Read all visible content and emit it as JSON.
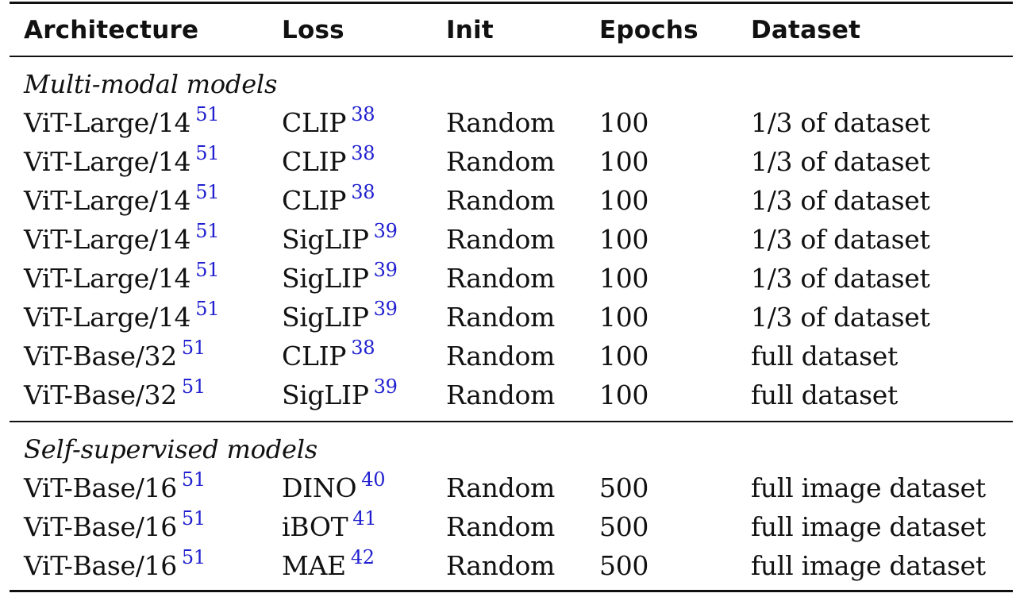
{
  "table": {
    "headers": [
      "Architecture",
      "Loss",
      "Init",
      "Epochs",
      "Dataset"
    ],
    "sections": [
      {
        "title": "Multi-modal models",
        "rows": [
          {
            "architecture": "ViT-Large/14",
            "architecture_ref": "51",
            "loss": "CLIP",
            "loss_ref": "38",
            "init": "Random",
            "epochs": "100",
            "dataset": "1/3 of dataset"
          },
          {
            "architecture": "ViT-Large/14",
            "architecture_ref": "51",
            "loss": "CLIP",
            "loss_ref": "38",
            "init": "Random",
            "epochs": "100",
            "dataset": "1/3 of dataset"
          },
          {
            "architecture": "ViT-Large/14",
            "architecture_ref": "51",
            "loss": "CLIP",
            "loss_ref": "38",
            "init": "Random",
            "epochs": "100",
            "dataset": "1/3 of dataset"
          },
          {
            "architecture": "ViT-Large/14",
            "architecture_ref": "51",
            "loss": "SigLIP",
            "loss_ref": "39",
            "init": "Random",
            "epochs": "100",
            "dataset": "1/3 of dataset"
          },
          {
            "architecture": "ViT-Large/14",
            "architecture_ref": "51",
            "loss": "SigLIP",
            "loss_ref": "39",
            "init": "Random",
            "epochs": "100",
            "dataset": "1/3 of dataset"
          },
          {
            "architecture": "ViT-Large/14",
            "architecture_ref": "51",
            "loss": "SigLIP",
            "loss_ref": "39",
            "init": "Random",
            "epochs": "100",
            "dataset": "1/3 of dataset"
          },
          {
            "architecture": "ViT-Base/32",
            "architecture_ref": "51",
            "loss": "CLIP",
            "loss_ref": "38",
            "init": "Random",
            "epochs": "100",
            "dataset": "full dataset"
          },
          {
            "architecture": "ViT-Base/32",
            "architecture_ref": "51",
            "loss": "SigLIP",
            "loss_ref": "39",
            "init": "Random",
            "epochs": "100",
            "dataset": "full dataset"
          }
        ]
      },
      {
        "title": "Self-supervised models",
        "rows": [
          {
            "architecture": "ViT-Base/16",
            "architecture_ref": "51",
            "loss": "DINO",
            "loss_ref": "40",
            "init": "Random",
            "epochs": "500",
            "dataset": "full image dataset"
          },
          {
            "architecture": "ViT-Base/16",
            "architecture_ref": "51",
            "loss": "iBOT",
            "loss_ref": "41",
            "init": "Random",
            "epochs": "500",
            "dataset": "full image dataset"
          },
          {
            "architecture": "ViT-Base/16",
            "architecture_ref": "51",
            "loss": "MAE",
            "loss_ref": "42",
            "init": "Random",
            "epochs": "500",
            "dataset": "full image dataset"
          }
        ]
      }
    ]
  },
  "colors": {
    "text": "#111111",
    "reference_link": "#2020d0",
    "rule": "#111111"
  }
}
